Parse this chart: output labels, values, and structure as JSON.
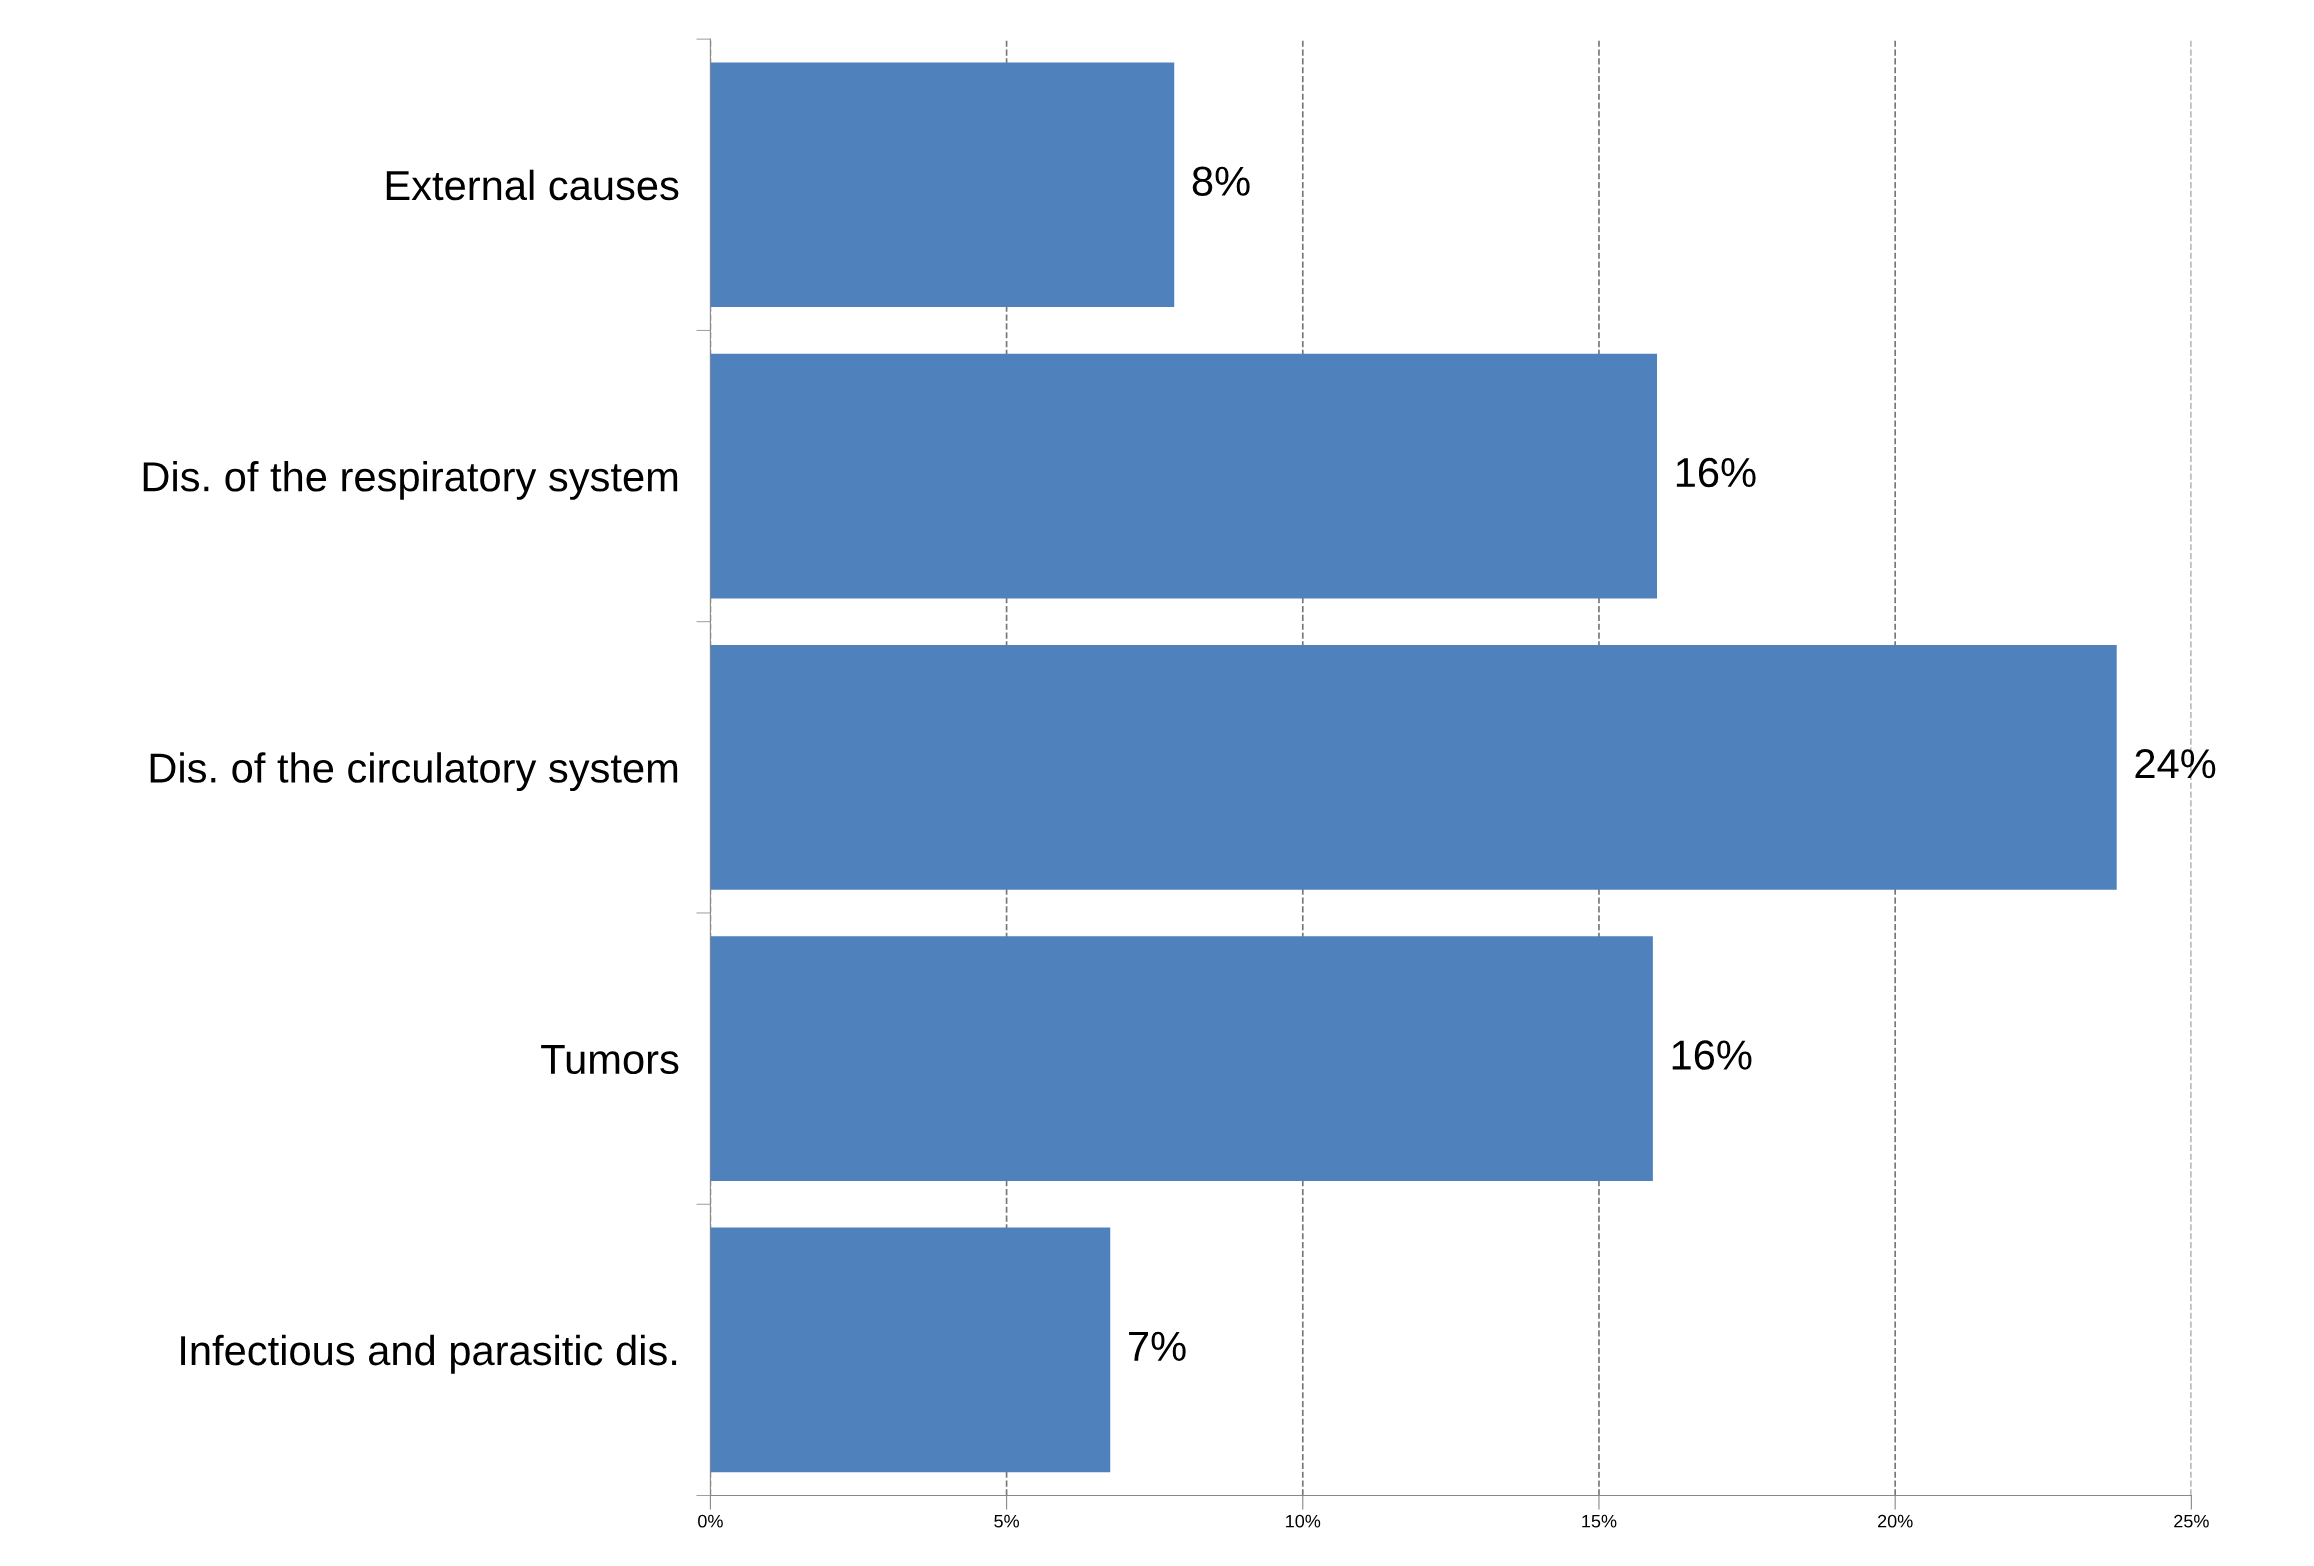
{
  "chart_data": {
    "type": "bar",
    "orientation": "horizontal",
    "categories": [
      "External causes",
      "Dis. of the respiratory system",
      "Dis. of the circulatory system",
      "Tumors",
      "Infectious and parasitic dis."
    ],
    "values": [
      7.83,
      15.98,
      23.74,
      15.91,
      6.75
    ],
    "value_labels": [
      "8%",
      "16%",
      "24%",
      "16%",
      "7%"
    ],
    "color": "#4f81bd",
    "xlim": [
      0,
      25
    ],
    "xticks": [
      {
        "value": 0,
        "label": "0%"
      },
      {
        "value": 5,
        "label": "5%"
      },
      {
        "value": 10,
        "label": "10%"
      },
      {
        "value": 15,
        "label": "15%"
      },
      {
        "value": 20,
        "label": "20%"
      },
      {
        "value": 25,
        "label": "25%"
      }
    ],
    "grid": "x",
    "legend": false
  }
}
